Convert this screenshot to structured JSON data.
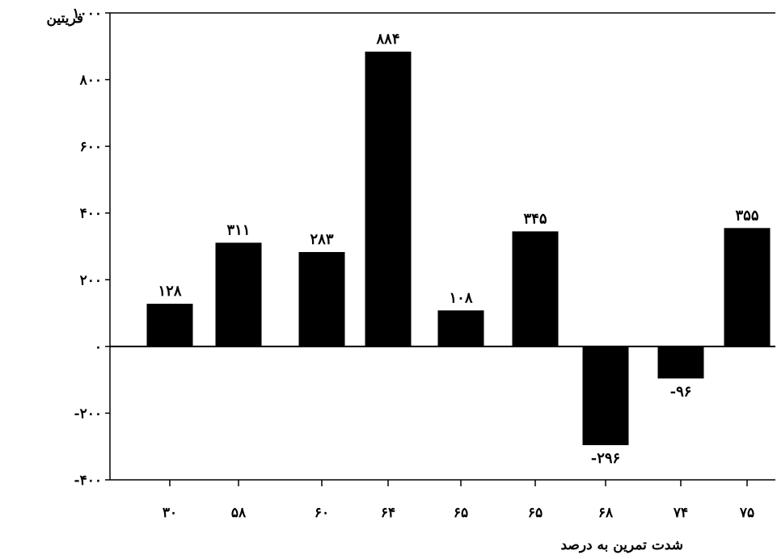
{
  "chart_data": {
    "type": "bar",
    "title": "",
    "ylabel": "فریتین",
    "xlabel": "شدت تمرین به درصد",
    "categories": [
      "۳۰",
      "۵۸",
      "۶۰",
      "۶۴",
      "۶۵",
      "۶۵",
      "۶۸",
      "۷۴",
      "۷۵"
    ],
    "values": [
      128,
      311,
      283,
      884,
      108,
      345,
      -296,
      -96,
      355
    ],
    "value_labels": [
      "۱۲۸",
      "۳۱۱",
      "۲۸۳",
      "۸۸۴",
      "۱۰۸",
      "۳۴۵",
      "-۲۹۶",
      "-۹۶",
      "۳۵۵"
    ],
    "ylim": [
      -400,
      1000
    ],
    "yticks": [
      -400,
      -200,
      0,
      200,
      400,
      600,
      800,
      1000
    ],
    "ytick_labels": [
      "-۴۰۰",
      "-۲۰۰",
      "۰",
      "۲۰۰",
      "۴۰۰",
      "۶۰۰",
      "۸۰۰",
      "۱۰۰۰"
    ],
    "grid": false,
    "legend": "none",
    "bar_color": "#000000"
  }
}
